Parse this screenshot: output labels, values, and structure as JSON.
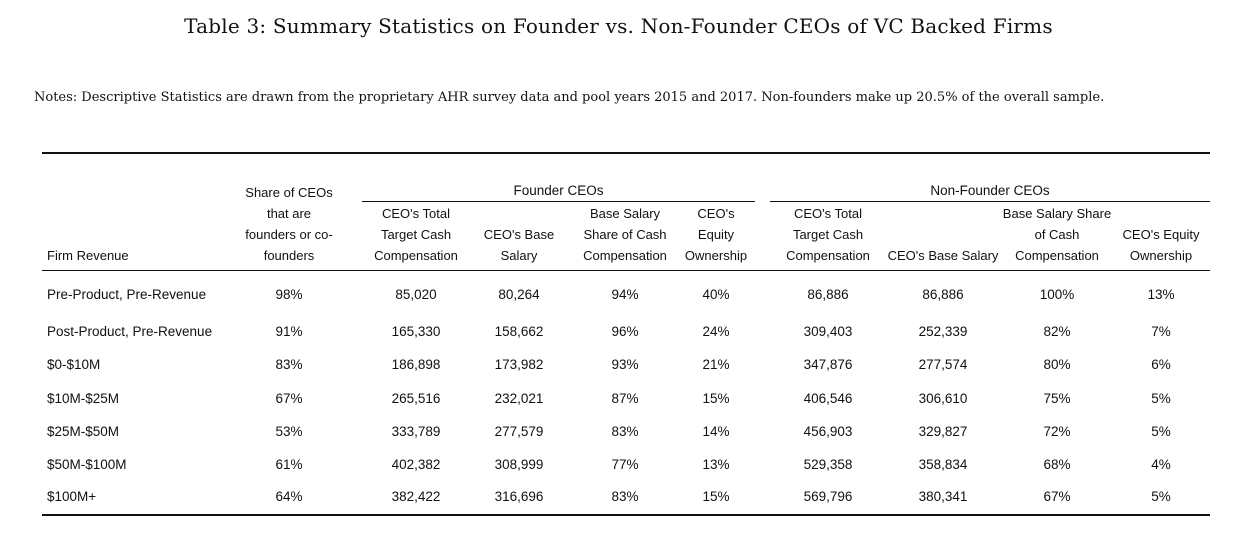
{
  "title": "Table 3: Summary Statistics on Founder vs. Non-Founder CEOs of VC Backed Firms",
  "notes": "Notes: Descriptive Statistics are drawn from the proprietary AHR survey data and pool years 2015 and 2017. Non-founders make up 20.5% of the overall sample.",
  "table": {
    "group_founder": "Founder CEOs",
    "group_nonfounder": "Non-Founder CEOs",
    "headers": [
      "Firm Revenue",
      "Share of CEOs\nthat are\nfounders or co-\nfounders",
      "CEO's Total\nTarget Cash\nCompensation",
      "CEO's Base\nSalary",
      "Base Salary\nShare of Cash\nCompensation",
      "CEO's\nEquity\nOwnership",
      "CEO's Total\nTarget Cash\nCompensation",
      "CEO's Base Salary",
      "Base Salary Share\nof Cash\nCompensation",
      "CEO's Equity\nOwnership"
    ],
    "rows": [
      [
        "Pre-Product, Pre-Revenue",
        "98%",
        "85,020",
        "80,264",
        "94%",
        "40%",
        "86,886",
        "86,886",
        "100%",
        "13%"
      ],
      [
        "Post-Product, Pre-Revenue",
        "91%",
        "165,330",
        "158,662",
        "96%",
        "24%",
        "309,403",
        "252,339",
        "82%",
        "7%"
      ],
      [
        "$0-$10M",
        "83%",
        "186,898",
        "173,982",
        "93%",
        "21%",
        "347,876",
        "277,574",
        "80%",
        "6%"
      ],
      [
        "$10M-$25M",
        "67%",
        "265,516",
        "232,021",
        "87%",
        "15%",
        "406,546",
        "306,610",
        "75%",
        "5%"
      ],
      [
        "$25M-$50M",
        "53%",
        "333,789",
        "277,579",
        "83%",
        "14%",
        "456,903",
        "329,827",
        "72%",
        "5%"
      ],
      [
        "$50M-$100M",
        "61%",
        "402,382",
        "308,999",
        "77%",
        "13%",
        "529,358",
        "358,834",
        "68%",
        "4%"
      ],
      [
        "$100M+",
        "64%",
        "382,422",
        "316,696",
        "83%",
        "15%",
        "569,796",
        "380,341",
        "67%",
        "5%"
      ]
    ]
  }
}
